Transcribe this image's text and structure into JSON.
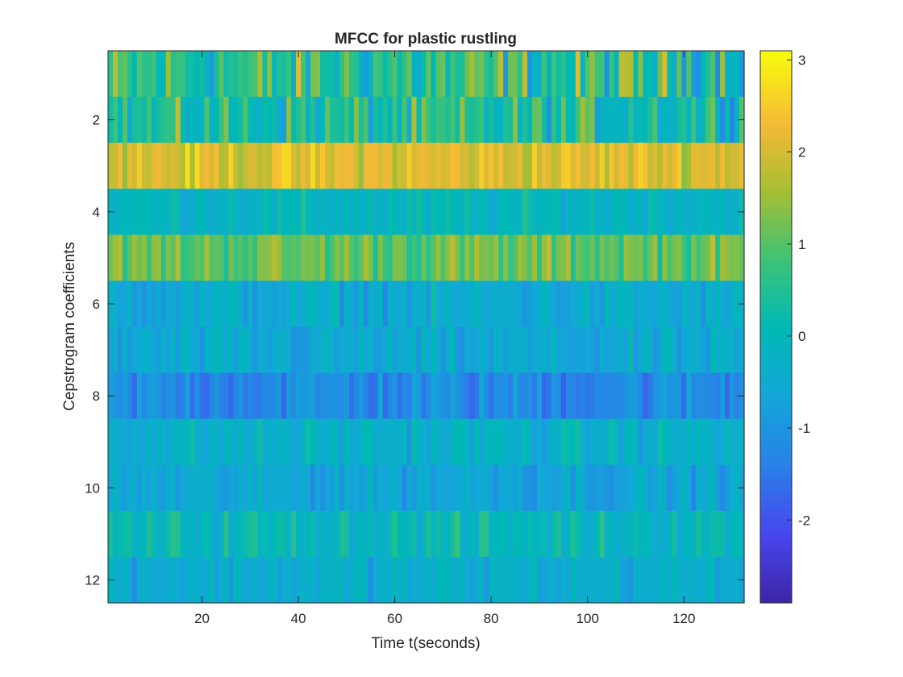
{
  "chart_data": {
    "type": "heatmap",
    "title": "MFCC for plastic rustling",
    "xlabel": "Time t(seconds)",
    "ylabel": "Cepstrogram coefficients",
    "x_range": [
      1,
      132
    ],
    "y_range": [
      1,
      12
    ],
    "x_ticks": [
      "20",
      "40",
      "60",
      "80",
      "100",
      "120"
    ],
    "y_ticks": [
      "2",
      "4",
      "6",
      "8",
      "10",
      "12"
    ],
    "colorbar": {
      "range": [
        -2.9,
        3.1
      ],
      "ticks": [
        "3",
        "2",
        "1",
        "0",
        "-1",
        "-2"
      ],
      "colormap": "parula"
    },
    "n_frames": 132,
    "n_coefficients": 12,
    "row_mean": [
      0.5,
      0.3,
      2.1,
      -0.1,
      1.1,
      -0.5,
      -0.6,
      -1.2,
      -0.3,
      -0.6,
      0.0,
      -0.4
    ],
    "row_spread": [
      1.3,
      1.0,
      0.5,
      0.45,
      0.6,
      0.55,
      0.55,
      0.55,
      0.5,
      0.5,
      0.55,
      0.5
    ]
  }
}
